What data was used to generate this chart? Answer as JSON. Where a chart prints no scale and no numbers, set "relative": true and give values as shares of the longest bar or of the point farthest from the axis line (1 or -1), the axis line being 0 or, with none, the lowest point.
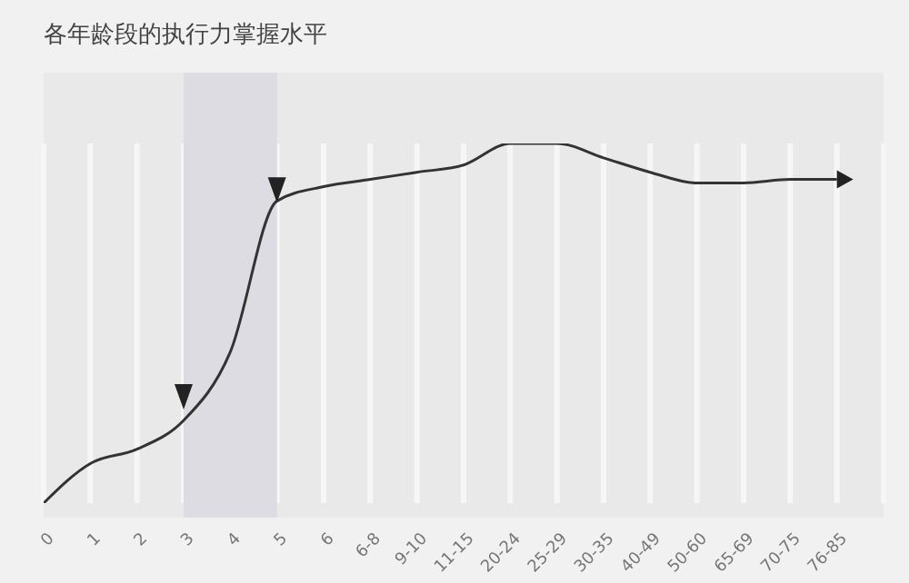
{
  "chart_data": {
    "type": "line",
    "title": "各年龄段的执行力掌握水平",
    "relative": true,
    "categories": [
      "0",
      "1",
      "2",
      "3",
      "4",
      "5",
      "6",
      "6-8",
      "9-10",
      "11-15",
      "20-24",
      "25-29",
      "30-35",
      "40-49",
      "50-60",
      "65-69",
      "70-75",
      "76-85"
    ],
    "series": [
      {
        "color": "#333333",
        "values": [
          0,
          0.11,
          0.15,
          0.23,
          0.42,
          0.84,
          0.88,
          0.9,
          0.92,
          0.94,
          1,
          1,
          0.96,
          0.92,
          0.89,
          0.89,
          0.9,
          0.9
        ]
      }
    ],
    "bands": [
      {
        "axis": "x",
        "from": "3",
        "to": "5",
        "color": "#dcdce2"
      }
    ],
    "grid": "x",
    "legend": false,
    "marker": "none",
    "line_style": "solid"
  }
}
